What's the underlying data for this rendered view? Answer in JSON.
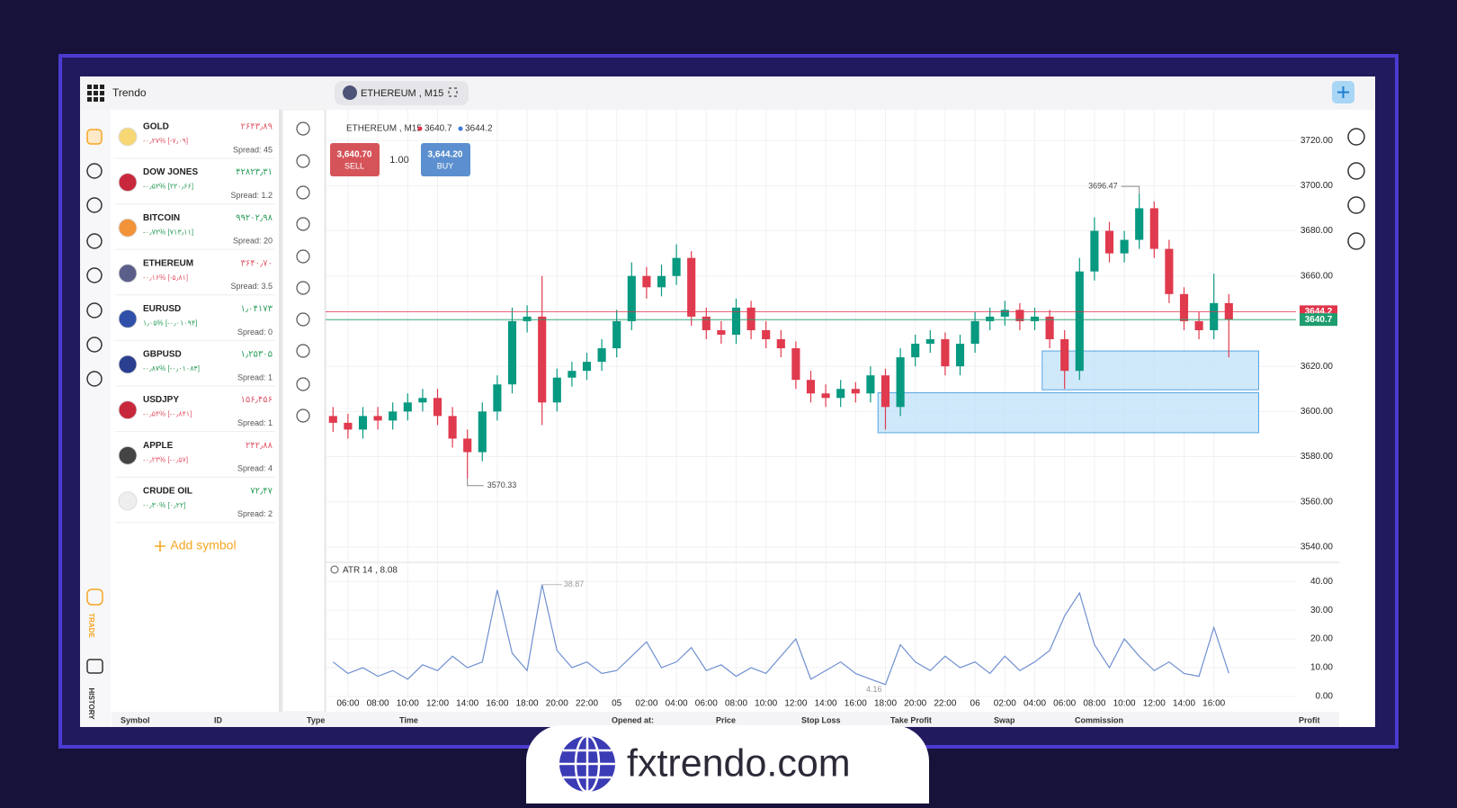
{
  "app": {
    "name": "Trendo",
    "tab": "ETHEREUM , M15"
  },
  "nav": {
    "trade": "TRADE",
    "history": "HISTORY"
  },
  "watchlist": {
    "add_symbol": "Add symbol",
    "items": [
      {
        "name": "GOLD",
        "price": "۲۶۴۳٫۸۹",
        "change": "-۰٫۲۷% [-۷٫۰۹]",
        "spread": "Spread: 45",
        "change_color": "#e05a6a",
        "icon_color": "#f7d774"
      },
      {
        "name": "DOW JONES",
        "price": "۴۲۸۲۳٫۳۱",
        "change": "-۰٫۵۲% [۲۲۰٫۶۶]",
        "spread": "Spread: 1.2",
        "change_color": "#2e9e5b",
        "icon_color": "#c8283c"
      },
      {
        "name": "BITCOIN",
        "price": "۹۹۲۰۲٫۹۸",
        "change": "-۰٫۷۲% [۷۱۳٫۱۱]",
        "spread": "Spread: 20",
        "change_color": "#2e9e5b",
        "icon_color": "#f2933a"
      },
      {
        "name": "ETHEREUM",
        "price": "۳۶۴۰٫۷۰",
        "change": "-۰٫۱۶% [-۵٫۸۱]",
        "spread": "Spread: 3.5",
        "change_color": "#e05a6a",
        "icon_color": "#5a5f8a"
      },
      {
        "name": "EURUSD",
        "price": "۱٫۰۴۱۷۳",
        "change": "۱٫۰۵% [-۰٫۰۱۰۹۴]",
        "spread": "Spread: 0",
        "change_color": "#2e9e5b",
        "icon_color": "#2f4fa8"
      },
      {
        "name": "GBPUSD",
        "price": "۱٫۲۵۳۰۵",
        "change": "-۰٫۸۷% [-۰٫۰۱۰۸۴]",
        "spread": "Spread: 1",
        "change_color": "#2e9e5b",
        "icon_color": "#2a3f8f"
      },
      {
        "name": "USDJPY",
        "price": "۱۵۶٫۴۵۶",
        "change": "-۰٫۵۴% [-۰٫۸۴۱]",
        "spread": "Spread: 1",
        "change_color": "#e05a6a",
        "icon_color": "#c8283c"
      },
      {
        "name": "APPLE",
        "price": "۲۴۲٫۸۸",
        "change": "-۰٫۲۳% [-۰٫۵۷]",
        "spread": "Spread: 4",
        "change_color": "#e05a6a",
        "icon_color": "#444444"
      },
      {
        "name": "CRUDE OIL",
        "price": "۷۲٫۴۷",
        "change": "-۰٫۳۰% [۰٫۲۲]",
        "spread": "Spread: 2",
        "change_color": "#2e9e5b",
        "icon_color": "#eeeeee"
      }
    ]
  },
  "trade_panel": {
    "sell_price": "3,640.70",
    "sell": "SELL",
    "lot": "1.00",
    "buy_price": "3,644.20",
    "buy": "BUY"
  },
  "chart_data": [
    {
      "type": "candlestick",
      "title": "ETHEREUM , M15",
      "bid": 3640.7,
      "ask": 3644.2,
      "up_color": "#089981",
      "down_color": "#e03a4e",
      "bid_color": "#1f9d6e",
      "ask_color": "#e0344a",
      "open": [
        3598,
        3595,
        3592,
        3598,
        3596,
        3600,
        3604,
        3606,
        3598,
        3588,
        3582,
        3600,
        3612,
        3640,
        3642,
        3604,
        3615,
        3618,
        3622,
        3628,
        3640,
        3660,
        3655,
        3660,
        3668,
        3642,
        3636,
        3634,
        3646,
        3636,
        3632,
        3628,
        3614,
        3608,
        3606,
        3610,
        3608,
        3616,
        3602,
        3624,
        3630,
        3632,
        3620,
        3630,
        3640,
        3642,
        3645,
        3640,
        3642,
        3632,
        3618,
        3662,
        3680,
        3670,
        3676,
        3690,
        3672,
        3652,
        3640,
        3636,
        3648
      ],
      "high": [
        3602,
        3599,
        3602,
        3602,
        3604,
        3608,
        3610,
        3610,
        3602,
        3592,
        3604,
        3616,
        3646,
        3647,
        3660,
        3619,
        3622,
        3626,
        3632,
        3645,
        3666,
        3664,
        3665,
        3674,
        3671,
        3646,
        3640,
        3650,
        3649,
        3640,
        3636,
        3631,
        3618,
        3612,
        3614,
        3613,
        3620,
        3619,
        3628,
        3634,
        3636,
        3635,
        3634,
        3644,
        3646,
        3649,
        3648,
        3646,
        3645,
        3636,
        3668,
        3686,
        3684,
        3680,
        3696.47,
        3693,
        3676,
        3655,
        3644,
        3661,
        3652
      ],
      "low": [
        3591,
        3588,
        3588,
        3592,
        3592,
        3596,
        3600,
        3594,
        3584,
        3570.33,
        3578,
        3596,
        3608,
        3635,
        3594,
        3600,
        3611,
        3614,
        3618,
        3624,
        3636,
        3650,
        3651,
        3656,
        3638,
        3632,
        3630,
        3630,
        3632,
        3628,
        3624,
        3610,
        3604,
        3602,
        3602,
        3604,
        3604,
        3592,
        3598,
        3620,
        3626,
        3616,
        3616,
        3626,
        3636,
        3638,
        3636,
        3636,
        3628,
        3610,
        3614,
        3658,
        3666,
        3666,
        3672,
        3668,
        3648,
        3636,
        3632,
        3632,
        3624
      ],
      "close": [
        3595,
        3592,
        3598,
        3596,
        3600,
        3604,
        3606,
        3598,
        3588,
        3582,
        3600,
        3612,
        3640,
        3642,
        3604,
        3615,
        3618,
        3622,
        3628,
        3640,
        3660,
        3655,
        3660,
        3668,
        3642,
        3636,
        3634,
        3646,
        3636,
        3632,
        3628,
        3614,
        3608,
        3606,
        3610,
        3608,
        3616,
        3602,
        3624,
        3630,
        3632,
        3620,
        3630,
        3640,
        3642,
        3645,
        3640,
        3642,
        3632,
        3618,
        3662,
        3680,
        3670,
        3676,
        3690,
        3672,
        3652,
        3640,
        3636,
        3648,
        3640.7
      ],
      "zones": [
        {
          "x": [
            47.5,
            62
          ],
          "y": [
            3609.6,
            3626.8
          ]
        },
        {
          "x": [
            36.5,
            62
          ],
          "y": [
            3590.6,
            3608.3
          ]
        }
      ],
      "zone_color": "#bfe0f8",
      "xlim": [
        -0.5,
        64.5
      ],
      "ylim": [
        3534,
        3732
      ],
      "yticks": [
        {
          "value": 3540,
          "label": "3540.00"
        },
        {
          "value": 3560,
          "label": "3560.00"
        },
        {
          "value": 3580,
          "label": "3580.00"
        },
        {
          "value": 3600,
          "label": "3600.00"
        },
        {
          "value": 3620,
          "label": "3620.00"
        },
        {
          "value": 3640,
          "label": "3640.00"
        },
        {
          "value": 3660,
          "label": "3660.00"
        },
        {
          "value": 3680,
          "label": "3680.00"
        },
        {
          "value": 3700,
          "label": "3700.00"
        },
        {
          "value": 3720,
          "label": "3720.00"
        }
      ],
      "xticks": [
        {
          "value": 1,
          "label": "06:00"
        },
        {
          "value": 3,
          "label": "08:00"
        },
        {
          "value": 5,
          "label": "10:00"
        },
        {
          "value": 7,
          "label": "12:00"
        },
        {
          "value": 9,
          "label": "14:00"
        },
        {
          "value": 11,
          "label": "16:00"
        },
        {
          "value": 13,
          "label": "18:00"
        },
        {
          "value": 15,
          "label": "20:00"
        },
        {
          "value": 17,
          "label": "22:00"
        },
        {
          "value": 19,
          "label": "05"
        },
        {
          "value": 21,
          "label": "02:00"
        },
        {
          "value": 23,
          "label": "04:00"
        },
        {
          "value": 25,
          "label": "06:00"
        },
        {
          "value": 27,
          "label": "08:00"
        },
        {
          "value": 29,
          "label": "10:00"
        },
        {
          "value": 31,
          "label": "12:00"
        },
        {
          "value": 33,
          "label": "14:00"
        },
        {
          "value": 35,
          "label": "16:00"
        },
        {
          "value": 37,
          "label": "18:00"
        },
        {
          "value": 39,
          "label": "20:00"
        },
        {
          "value": 41,
          "label": "22:00"
        },
        {
          "value": 43,
          "label": "06"
        },
        {
          "value": 45,
          "label": "02:00"
        },
        {
          "value": 47,
          "label": "04:00"
        },
        {
          "value": 49,
          "label": "06:00"
        },
        {
          "value": 51,
          "label": "08:00"
        },
        {
          "value": 53,
          "label": "10:00"
        },
        {
          "value": 55,
          "label": "12:00"
        },
        {
          "value": 57,
          "label": "14:00"
        },
        {
          "value": 59,
          "label": "16:00"
        }
      ],
      "grid": true
    },
    {
      "type": "line",
      "title": "ATR 14 , 8.08",
      "color": "#6f8fd0",
      "values": [
        12,
        8,
        10,
        7,
        9,
        6,
        11,
        9,
        14,
        10,
        12,
        37,
        15,
        9,
        38.87,
        16,
        10,
        12,
        8,
        9,
        14,
        19,
        10,
        12,
        17,
        9,
        11,
        7,
        10,
        8,
        14,
        20,
        6,
        9,
        12,
        8,
        6,
        4.16,
        18,
        12,
        9,
        14,
        10,
        12,
        8,
        14,
        9,
        12,
        16,
        28,
        36,
        18,
        10,
        20,
        14,
        9,
        12,
        8,
        7,
        24,
        8.08
      ],
      "ylim": [
        -5,
        46
      ],
      "yticks": [
        {
          "value": 0,
          "label": "0.00"
        },
        {
          "value": 10,
          "label": "10.00"
        },
        {
          "value": 20,
          "label": "20.00"
        },
        {
          "value": 30,
          "label": "30.00"
        },
        {
          "value": 40,
          "label": "40.00"
        }
      ],
      "grid": true
    }
  ],
  "positions_table": {
    "columns": [
      "Symbol",
      "ID",
      "Type",
      "Time",
      "Opened at:",
      "Price",
      "Stop Loss",
      "Take Profit",
      "Swap",
      "Commission",
      "Profit"
    ]
  },
  "footer": {
    "site": "fxtrendo.com"
  }
}
